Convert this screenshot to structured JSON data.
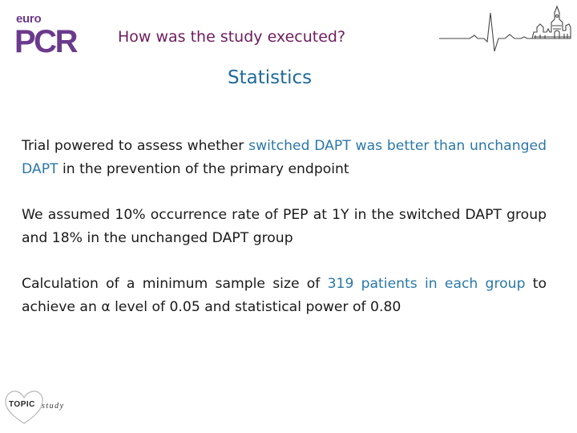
{
  "logo": {
    "prefix": "euro",
    "main": "PCR"
  },
  "header": {
    "title": "How was the study executed?"
  },
  "section": {
    "title": "Statistics"
  },
  "paragraphs": [
    {
      "part1": "Trial powered to assess whether ",
      "highlight": "switched DAPT was better than unchanged DAPT",
      "part2": " in the prevention of the primary endpoint"
    },
    {
      "text": "We assumed 10% occurrence rate of PEP at 1Y in the switched DAPT group and 18% in the unchanged DAPT group"
    },
    {
      "part1": "Calculation of a minimum sample size of ",
      "highlight": "319 patients in each group",
      "part2": " to achieve an α level of 0.05 and statistical power of 0.80"
    }
  ],
  "footer_logo": {
    "name": "TOPIC",
    "suffix": "study"
  },
  "colors": {
    "brand_purple": "#6b3a8c",
    "title_plum": "#6e1c5e",
    "accent_blue": "#2a78a7"
  },
  "icons": {
    "header_graphic": "ecg-skyline-icon"
  }
}
